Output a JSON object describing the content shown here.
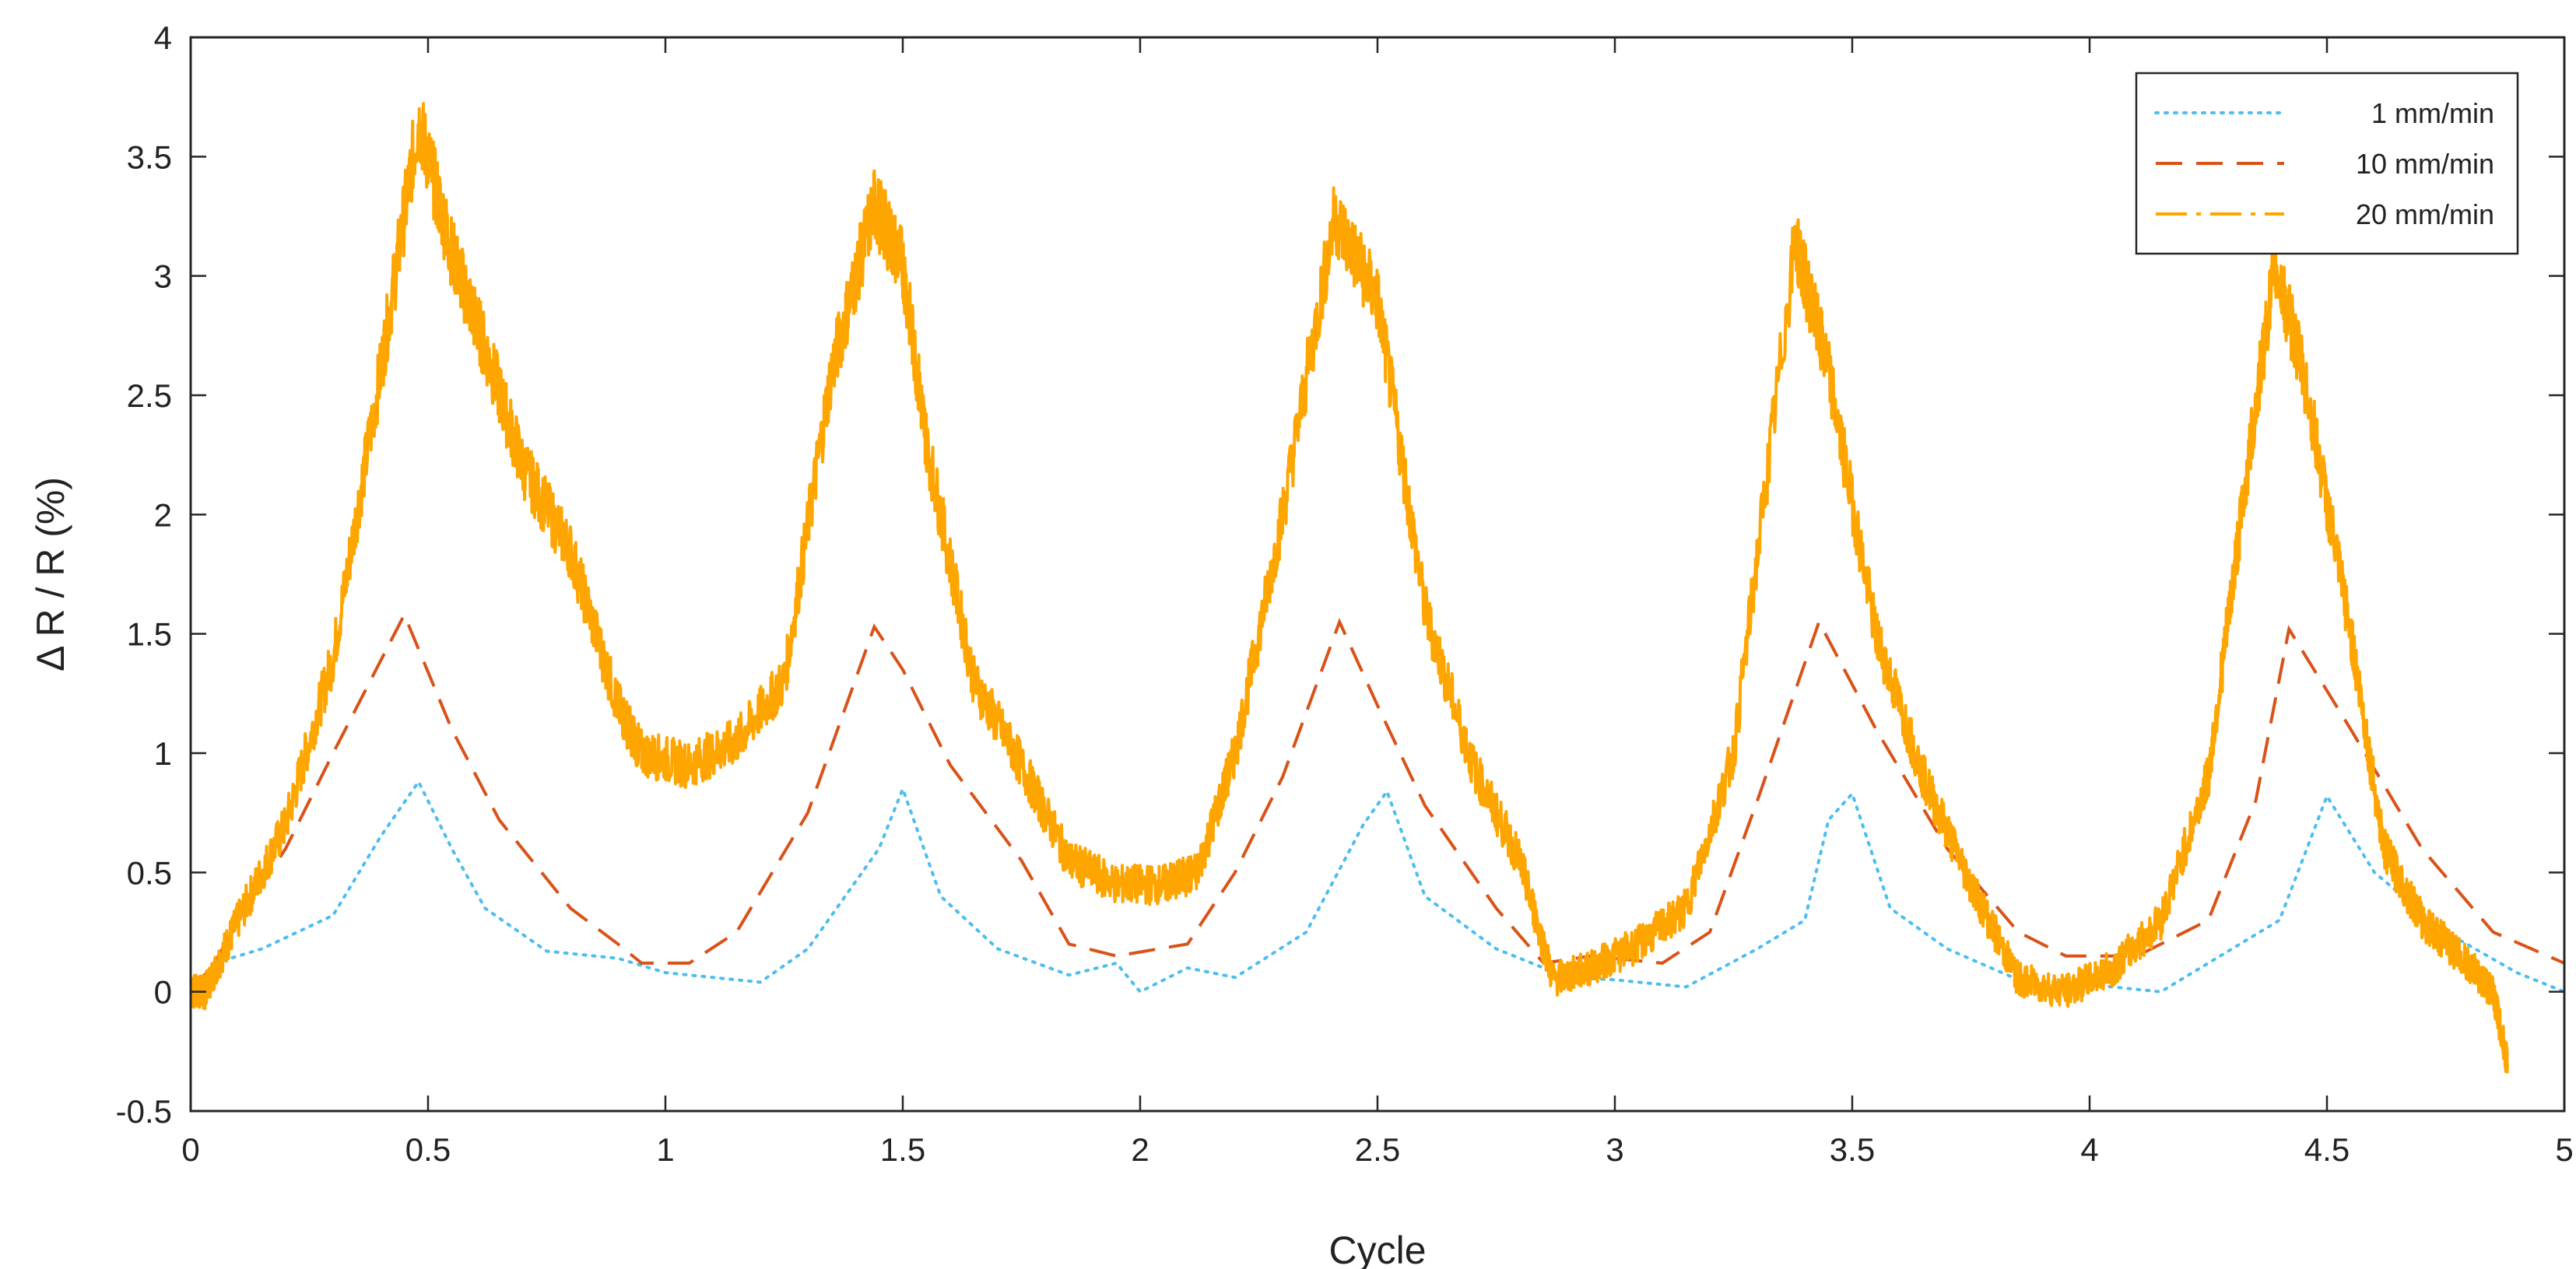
{
  "chart_data": {
    "type": "line",
    "title": "",
    "xlabel": "Cycle",
    "ylabel": "Δ R / R (%)",
    "xlim": [
      0,
      5
    ],
    "ylim": [
      -0.5,
      4
    ],
    "xticks": [
      0,
      0.5,
      1,
      1.5,
      2,
      2.5,
      3,
      3.5,
      4,
      4.5,
      5
    ],
    "yticks": [
      -0.5,
      0,
      0.5,
      1,
      1.5,
      2,
      2.5,
      3,
      3.5,
      4
    ],
    "xtick_labels": [
      "0",
      "0.5",
      "1",
      "1.5",
      "2",
      "2.5",
      "3",
      "3.5",
      "4",
      "4.5",
      "5"
    ],
    "ytick_labels": [
      "-0.5",
      "0",
      "0.5",
      "1",
      "1.5",
      "2",
      "2.5",
      "3",
      "3.5",
      "4"
    ],
    "grid": false,
    "legend_position": "top-right",
    "series": [
      {
        "name": "1 mm/min",
        "color": "#4DBEEE",
        "dash": "dotted",
        "noise": 0,
        "x": [
          0,
          0.05,
          0.15,
          0.3,
          0.4,
          0.48,
          0.55,
          0.62,
          0.75,
          0.9,
          1.0,
          1.1,
          1.2,
          1.3,
          1.45,
          1.5,
          1.58,
          1.7,
          1.85,
          1.95,
          2.0,
          2.1,
          2.2,
          2.35,
          2.47,
          2.52,
          2.6,
          2.75,
          2.9,
          3.0,
          3.15,
          3.3,
          3.4,
          3.45,
          3.5,
          3.58,
          3.7,
          3.85,
          4.0,
          4.15,
          4.3,
          4.4,
          4.5,
          4.6,
          4.75,
          4.9,
          5.0
        ],
        "y": [
          0.0,
          0.12,
          0.18,
          0.32,
          0.65,
          0.88,
          0.6,
          0.35,
          0.17,
          0.14,
          0.08,
          0.06,
          0.04,
          0.18,
          0.6,
          0.85,
          0.4,
          0.18,
          0.07,
          0.12,
          0.0,
          0.1,
          0.06,
          0.25,
          0.7,
          0.84,
          0.4,
          0.18,
          0.06,
          0.05,
          0.02,
          0.18,
          0.3,
          0.72,
          0.83,
          0.35,
          0.18,
          0.05,
          0.03,
          0.0,
          0.18,
          0.3,
          0.82,
          0.5,
          0.25,
          0.08,
          0.0
        ]
      },
      {
        "name": "10 mm/min",
        "color": "#D95319",
        "dash": "dashed",
        "noise": 0,
        "x": [
          0,
          0.05,
          0.1,
          0.2,
          0.3,
          0.45,
          0.55,
          0.65,
          0.8,
          0.9,
          0.95,
          1.05,
          1.15,
          1.3,
          1.44,
          1.5,
          1.6,
          1.75,
          1.85,
          1.95,
          2.1,
          2.2,
          2.3,
          2.42,
          2.5,
          2.6,
          2.75,
          2.85,
          2.95,
          3.1,
          3.2,
          3.3,
          3.43,
          3.55,
          3.7,
          3.85,
          3.95,
          4.1,
          4.25,
          4.35,
          4.42,
          4.55,
          4.7,
          4.85,
          5.0
        ],
        "y": [
          0.0,
          0.12,
          0.3,
          0.6,
          1.0,
          1.58,
          1.1,
          0.72,
          0.35,
          0.2,
          0.12,
          0.12,
          0.25,
          0.75,
          1.53,
          1.35,
          0.95,
          0.55,
          0.2,
          0.15,
          0.2,
          0.5,
          0.9,
          1.55,
          1.2,
          0.78,
          0.35,
          0.12,
          0.15,
          0.12,
          0.25,
          0.8,
          1.55,
          1.1,
          0.6,
          0.25,
          0.15,
          0.15,
          0.3,
          0.8,
          1.52,
          1.1,
          0.6,
          0.25,
          0.12
        ]
      },
      {
        "name": "20 mm/min",
        "color": "#FFA500",
        "dash": "dashdot",
        "noise": 0.12,
        "x": [
          0,
          0.03,
          0.1,
          0.2,
          0.3,
          0.4,
          0.48,
          0.55,
          0.62,
          0.7,
          0.8,
          0.9,
          0.95,
          1.05,
          1.15,
          1.25,
          1.35,
          1.44,
          1.5,
          1.55,
          1.65,
          1.75,
          1.85,
          1.95,
          2.05,
          2.12,
          2.2,
          2.3,
          2.41,
          2.5,
          2.6,
          2.7,
          2.8,
          2.87,
          2.95,
          3.05,
          3.15,
          3.25,
          3.38,
          3.45,
          3.55,
          3.65,
          3.75,
          3.85,
          3.95,
          4.05,
          4.15,
          4.25,
          4.32,
          4.39,
          4.45,
          4.55,
          4.62,
          4.7,
          4.78,
          4.85,
          4.88
        ],
        "y": [
          0.0,
          0.0,
          0.3,
          0.7,
          1.4,
          2.6,
          3.65,
          3.1,
          2.7,
          2.2,
          1.85,
          1.2,
          1.0,
          0.95,
          1.05,
          1.3,
          2.6,
          3.3,
          3.05,
          2.3,
          1.3,
          0.95,
          0.55,
          0.45,
          0.45,
          0.5,
          1.0,
          2.0,
          3.25,
          2.9,
          1.6,
          0.95,
          0.55,
          0.05,
          0.1,
          0.2,
          0.35,
          1.0,
          3.15,
          2.6,
          1.5,
          0.9,
          0.45,
          0.05,
          0.0,
          0.1,
          0.3,
          0.9,
          2.0,
          3.05,
          2.6,
          1.5,
          0.6,
          0.3,
          0.15,
          0.0,
          -0.3
        ]
      }
    ]
  }
}
